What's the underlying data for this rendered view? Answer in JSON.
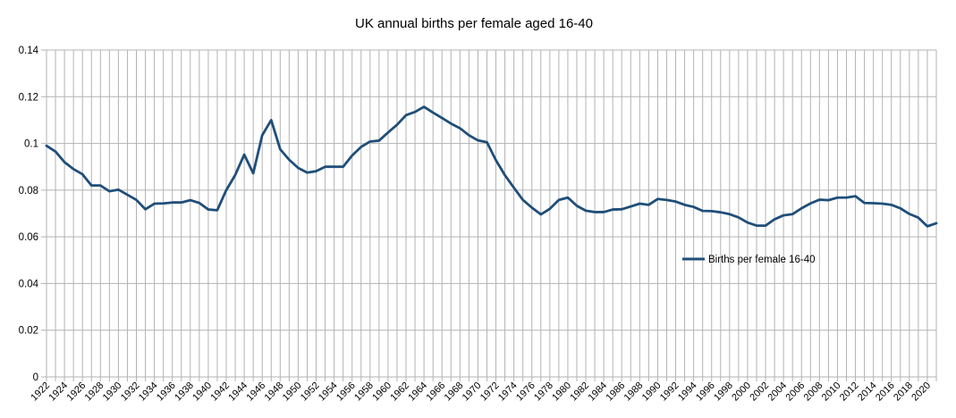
{
  "chart_data": {
    "type": "line",
    "title": "UK annual births per female aged 16-40",
    "xlabel": "",
    "ylabel": "",
    "ylim": [
      0,
      0.14
    ],
    "yticks": [
      "0",
      "0.02",
      "0.04",
      "0.06",
      "0.08",
      "0.1",
      "0.12",
      "0.14"
    ],
    "xlim": [
      1922,
      2021
    ],
    "xticks": [
      "1922",
      "1924",
      "1926",
      "1928",
      "1930",
      "1932",
      "1934",
      "1936",
      "1938",
      "1940",
      "1942",
      "1944",
      "1946",
      "1948",
      "1950",
      "1952",
      "1954",
      "1956",
      "1958",
      "1960",
      "1962",
      "1964",
      "1966",
      "1968",
      "1970",
      "1972",
      "1974",
      "1976",
      "1978",
      "1980",
      "1982",
      "1984",
      "1986",
      "1988",
      "1990",
      "1992",
      "1994",
      "1996",
      "1998",
      "2000",
      "2002",
      "2004",
      "2006",
      "2008",
      "2010",
      "2012",
      "2014",
      "2016",
      "2018",
      "2020"
    ],
    "grid": true,
    "legend_position": "right",
    "series": [
      {
        "name": "Births per female 16-40",
        "color": "#1f4e79",
        "x": [
          1922,
          1923,
          1924,
          1925,
          1926,
          1927,
          1928,
          1929,
          1930,
          1931,
          1932,
          1933,
          1934,
          1935,
          1936,
          1937,
          1938,
          1939,
          1940,
          1941,
          1942,
          1943,
          1944,
          1945,
          1946,
          1947,
          1948,
          1949,
          1950,
          1951,
          1952,
          1953,
          1954,
          1955,
          1956,
          1957,
          1958,
          1959,
          1960,
          1961,
          1962,
          1963,
          1964,
          1965,
          1966,
          1967,
          1968,
          1969,
          1970,
          1971,
          1972,
          1973,
          1974,
          1975,
          1976,
          1977,
          1978,
          1979,
          1980,
          1981,
          1982,
          1983,
          1984,
          1985,
          1986,
          1987,
          1988,
          1989,
          1990,
          1991,
          1992,
          1993,
          1994,
          1995,
          1996,
          1997,
          1998,
          1999,
          2000,
          2001,
          2002,
          2003,
          2004,
          2005,
          2006,
          2007,
          2008,
          2009,
          2010,
          2011,
          2012,
          2013,
          2014,
          2015,
          2016,
          2017,
          2018,
          2019,
          2020,
          2021
        ],
        "values": [
          0.099,
          0.0965,
          0.092,
          0.089,
          0.0868,
          0.082,
          0.082,
          0.0795,
          0.0802,
          0.078,
          0.0758,
          0.0718,
          0.0742,
          0.0743,
          0.0747,
          0.0747,
          0.0757,
          0.0745,
          0.0717,
          0.0714,
          0.08,
          0.0865,
          0.0952,
          0.0872,
          0.1035,
          0.11,
          0.0975,
          0.093,
          0.0895,
          0.0875,
          0.0881,
          0.09,
          0.09,
          0.09,
          0.0948,
          0.0985,
          0.1008,
          0.1012,
          0.1047,
          0.108,
          0.1121,
          0.1135,
          0.1157,
          0.1132,
          0.1109,
          0.1085,
          0.1065,
          0.1035,
          0.1013,
          0.1005,
          0.0928,
          0.0864,
          0.081,
          0.0758,
          0.0725,
          0.0696,
          0.072,
          0.0758,
          0.0768,
          0.0733,
          0.0712,
          0.0706,
          0.0706,
          0.0717,
          0.0718,
          0.073,
          0.0742,
          0.0737,
          0.0762,
          0.0758,
          0.0751,
          0.0737,
          0.0728,
          0.0711,
          0.071,
          0.0705,
          0.0697,
          0.0683,
          0.0661,
          0.0648,
          0.0648,
          0.0675,
          0.0692,
          0.0697,
          0.0722,
          0.0743,
          0.0759,
          0.0757,
          0.0768,
          0.0768,
          0.0774,
          0.0745,
          0.0744,
          0.0742,
          0.0737,
          0.0722,
          0.0698,
          0.0682,
          0.0645,
          0.0658
        ]
      }
    ]
  }
}
